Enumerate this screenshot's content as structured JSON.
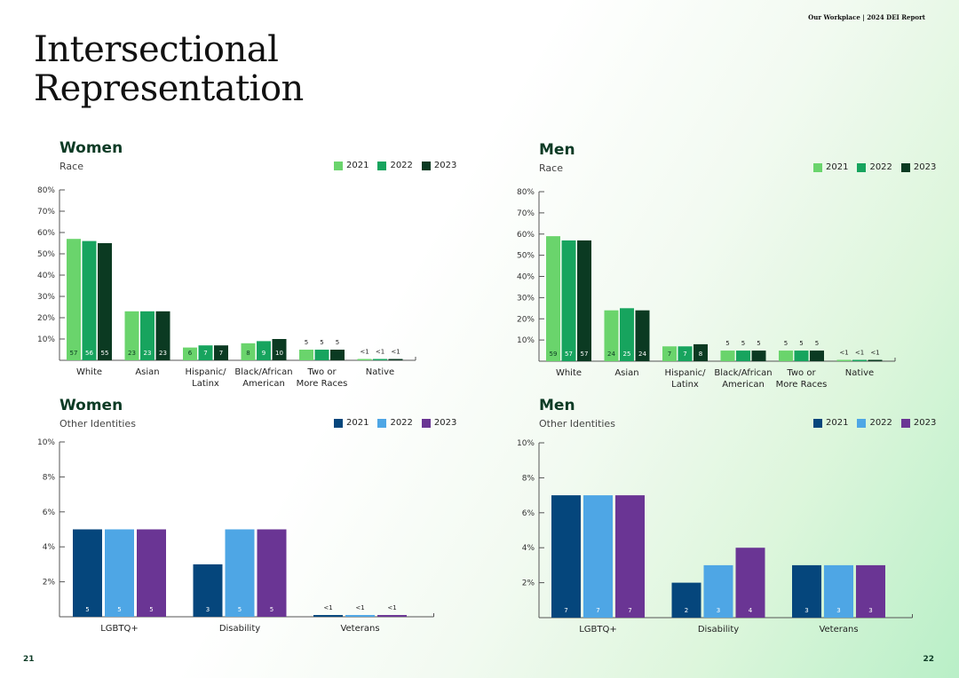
{
  "header": {
    "report_label": "Our Workplace | 2024 DEI Report"
  },
  "page": {
    "title_line1": "Intersectional",
    "title_line2": "Representation",
    "page_left": "21",
    "page_right": "22"
  },
  "colors": {
    "race": [
      "#6ad46c",
      "#17a45e",
      "#0b3a22"
    ],
    "other": [
      "#05467c",
      "#4ea6e5",
      "#6a3594"
    ]
  },
  "chart_data": [
    {
      "id": "women-race",
      "type": "bar",
      "title": "Women",
      "subtitle": "Race",
      "categories": [
        [
          "White"
        ],
        [
          "Asian"
        ],
        [
          "Hispanic/",
          "Latinx"
        ],
        [
          "Black/African",
          "American"
        ],
        [
          "Two or",
          "More Races"
        ],
        [
          "Native"
        ]
      ],
      "series": [
        {
          "name": "2021",
          "values": [
            57,
            23,
            6,
            8,
            5,
            0.5
          ],
          "labels": [
            "57",
            "23",
            "6",
            "8",
            "5",
            "<1"
          ]
        },
        {
          "name": "2022",
          "values": [
            56,
            23,
            7,
            9,
            5,
            0.5
          ],
          "labels": [
            "56",
            "23",
            "7",
            "9",
            "5",
            "<1"
          ]
        },
        {
          "name": "2023",
          "values": [
            55,
            23,
            7,
            10,
            5,
            0.5
          ],
          "labels": [
            "55",
            "23",
            "7",
            "10",
            "5",
            "<1"
          ]
        }
      ],
      "ylim": [
        0,
        80
      ],
      "yticks": [
        10,
        20,
        30,
        40,
        50,
        60,
        70,
        80
      ],
      "ytick_labels": [
        "10%",
        "20%",
        "30%",
        "40%",
        "50%",
        "60%",
        "70%",
        "80%"
      ],
      "palette": "race",
      "legend": "top-right"
    },
    {
      "id": "men-race",
      "type": "bar",
      "title": "Men",
      "subtitle": "Race",
      "categories": [
        [
          "White"
        ],
        [
          "Asian"
        ],
        [
          "Hispanic/",
          "Latinx"
        ],
        [
          "Black/African",
          "American"
        ],
        [
          "Two or",
          "More Races"
        ],
        [
          "Native"
        ]
      ],
      "series": [
        {
          "name": "2021",
          "values": [
            59,
            24,
            7,
            5,
            5,
            0.5
          ],
          "labels": [
            "59",
            "24",
            "7",
            "5",
            "5",
            "<1"
          ]
        },
        {
          "name": "2022",
          "values": [
            57,
            25,
            7,
            5,
            5,
            0.5
          ],
          "labels": [
            "57",
            "25",
            "7",
            "5",
            "5",
            "<1"
          ]
        },
        {
          "name": "2023",
          "values": [
            57,
            24,
            8,
            5,
            5,
            0.5
          ],
          "labels": [
            "57",
            "24",
            "8",
            "5",
            "5",
            "<1"
          ]
        }
      ],
      "ylim": [
        0,
        80
      ],
      "yticks": [
        10,
        20,
        30,
        40,
        50,
        60,
        70,
        80
      ],
      "ytick_labels": [
        "10%",
        "20%",
        "30%",
        "40%",
        "50%",
        "60%",
        "70%",
        "80%"
      ],
      "palette": "race",
      "legend": "top-right"
    },
    {
      "id": "women-other",
      "type": "bar",
      "title": "Women",
      "subtitle": "Other Identities",
      "categories": [
        [
          "LGBTQ+"
        ],
        [
          "Disability"
        ],
        [
          "Veterans"
        ]
      ],
      "series": [
        {
          "name": "2021",
          "values": [
            5,
            3,
            0.1
          ],
          "labels": [
            "5",
            "3",
            "<1"
          ]
        },
        {
          "name": "2022",
          "values": [
            5,
            5,
            0.1
          ],
          "labels": [
            "5",
            "5",
            "<1"
          ]
        },
        {
          "name": "2023",
          "values": [
            5,
            5,
            0.1
          ],
          "labels": [
            "5",
            "5",
            "<1"
          ]
        }
      ],
      "ylim": [
        0,
        10
      ],
      "yticks": [
        2,
        4,
        6,
        8,
        10
      ],
      "ytick_labels": [
        "2%",
        "4%",
        "6%",
        "8%",
        "10%"
      ],
      "palette": "other",
      "legend": "top-right"
    },
    {
      "id": "men-other",
      "type": "bar",
      "title": "Men",
      "subtitle": "Other Identities",
      "categories": [
        [
          "LGBTQ+"
        ],
        [
          "Disability"
        ],
        [
          "Veterans"
        ]
      ],
      "series": [
        {
          "name": "2021",
          "values": [
            7,
            2,
            3
          ],
          "labels": [
            "7",
            "2",
            "3"
          ]
        },
        {
          "name": "2022",
          "values": [
            7,
            3,
            3
          ],
          "labels": [
            "7",
            "3",
            "3"
          ]
        },
        {
          "name": "2023",
          "values": [
            7,
            4,
            3
          ],
          "labels": [
            "7",
            "4",
            "3"
          ]
        }
      ],
      "ylim": [
        0,
        10
      ],
      "yticks": [
        2,
        4,
        6,
        8,
        10
      ],
      "ytick_labels": [
        "2%",
        "4%",
        "6%",
        "8%",
        "10%"
      ],
      "palette": "other",
      "legend": "top-right"
    }
  ]
}
